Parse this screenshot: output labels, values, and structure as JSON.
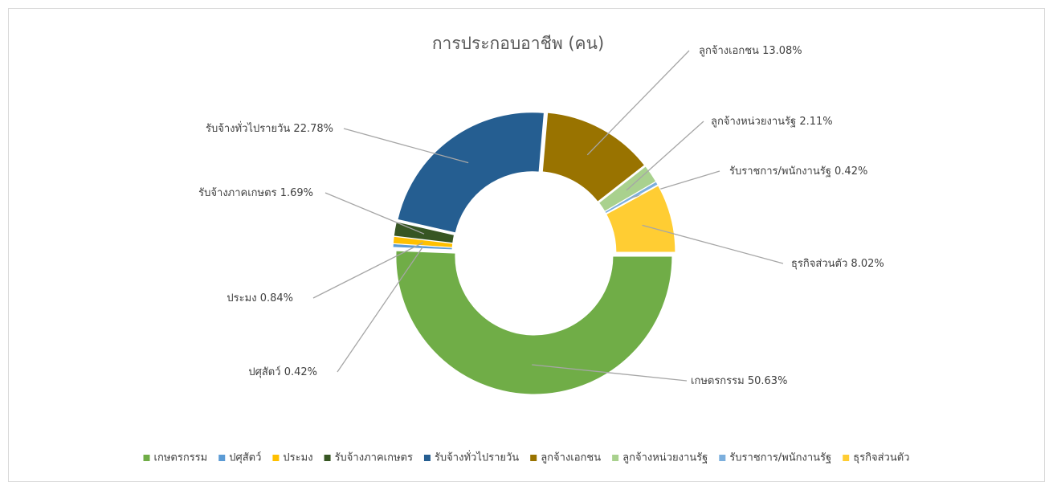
{
  "chart_data": {
    "type": "donut",
    "title": "การประกอบอาชีพ (คน)",
    "categories": [
      "เกษตรกรรม",
      "ปศุสัตว์",
      "ประมง",
      "รับจ้างภาคเกษตร",
      "รับจ้างทั่วไปรายวัน",
      "ลูกจ้างเอกชน",
      "ลูกจ้างหน่วยงานรัฐ",
      "รับราชการ/พนักงานรัฐ",
      "ธุรกิจส่วนตัว"
    ],
    "values": [
      50.63,
      0.42,
      0.84,
      1.69,
      22.78,
      13.08,
      2.11,
      0.42,
      8.02
    ],
    "value_labels": [
      "50.63%",
      "0.42%",
      "0.84%",
      "1.69%",
      "22.78%",
      "13.08%",
      "2.11%",
      "0.42%",
      "8.02%"
    ],
    "colors": [
      "#70ad47",
      "#5b9bd5",
      "#ffc000",
      "#375623",
      "#255e91",
      "#997300",
      "#a9d18e",
      "#7cafdd",
      "#ffcd33"
    ],
    "legend": "bottom"
  }
}
